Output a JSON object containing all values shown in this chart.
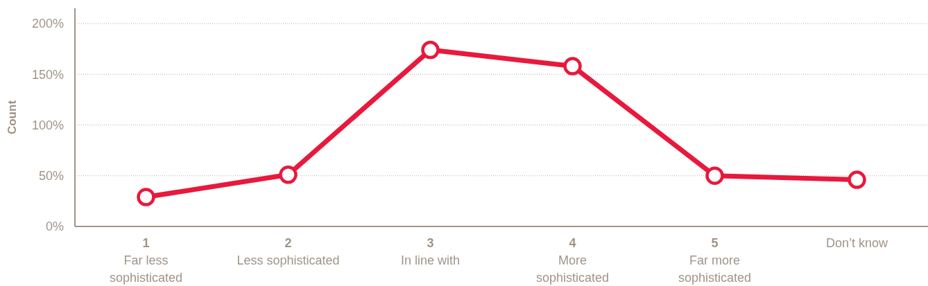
{
  "chart_data": {
    "type": "line",
    "ylabel": "Count",
    "categories": [
      "1\nFar less\nsophisticated",
      "2\nLess sophisticated",
      "3\nIn line with",
      "4\nMore\nsophisticated",
      "5\nFar more\nsophisticated",
      "Don’t know"
    ],
    "series": [
      {
        "color": "#e8193c",
        "values": [
          29,
          51,
          174,
          158,
          50,
          46
        ]
      }
    ],
    "ylim": [
      0,
      215
    ],
    "yticks": [
      {
        "value": 0,
        "label": "0%"
      },
      {
        "value": 50,
        "label": "50%"
      },
      {
        "value": 100,
        "label": "100%"
      },
      {
        "value": 150,
        "label": "150%"
      },
      {
        "value": 200,
        "label": "200%"
      }
    ],
    "grid": "y",
    "marker": "circle",
    "line_style": "solid"
  }
}
